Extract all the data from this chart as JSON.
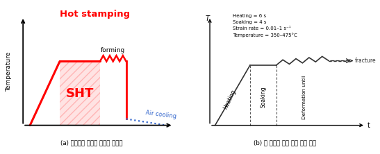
{
  "title_left": "Hot stamping",
  "title_left_color": "#ff0000",
  "ylabel_left": "Temperature",
  "xlabel_right": "t",
  "ylabel_right": "T",
  "sht_label": "SHT",
  "forming_label": "forming",
  "air_cooling_label": "Air cooling",
  "heating_label": "Heating",
  "soaking_label": "Soaking",
  "deformation_label": "Deformation until",
  "fracture_label": "fracture",
  "annotation_line1": "Heating = 6 s",
  "annotation_line2": "Soaking = 4 s",
  "annotation_line3": "Strain rate = 0.01–1 s⁻¹",
  "annotation_line4": "Temperature = 350–475°C",
  "caption_left": "(a) 알루미님 핯포밍 공정의 개낙도",
  "caption_right": "(b) 타 논문의 고온 물성 실험 방법",
  "bg_color": "#ffffff"
}
